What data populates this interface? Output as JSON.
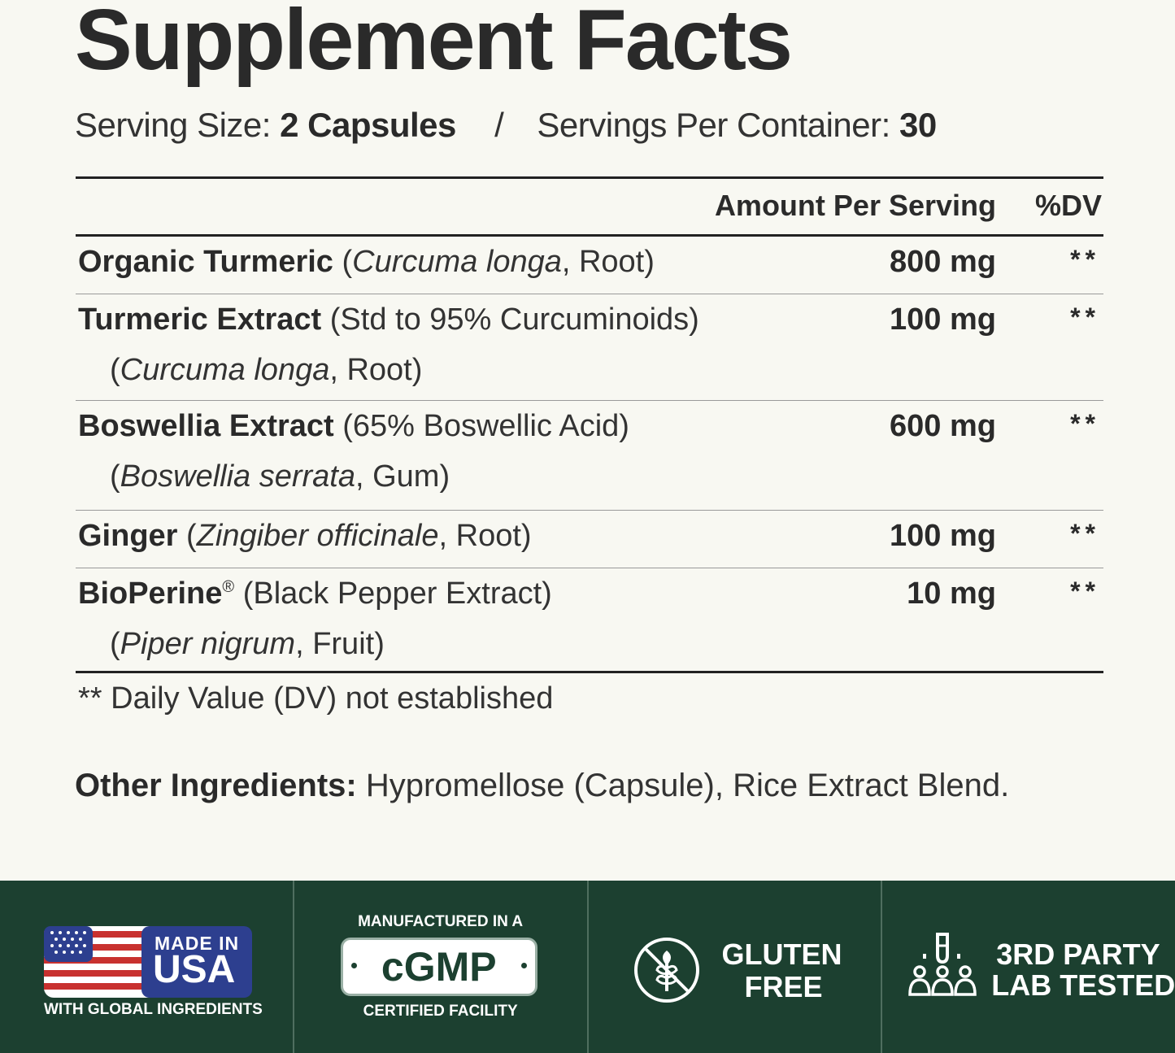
{
  "title": "Supplement Facts",
  "serving": {
    "size_label": "Serving Size:",
    "size_value": "2 Capsules",
    "separator": "/",
    "per_container_label": "Servings Per Container:",
    "per_container_value": "30"
  },
  "table": {
    "amount_header": "Amount Per Serving",
    "dv_header": "%DV",
    "rows": [
      {
        "name": "Organic Turmeric",
        "desc_open": " (",
        "desc_italic": "Curcuma longa",
        "desc_rest": ", Root)",
        "amount": "800 mg",
        "dv": "**"
      },
      {
        "name": "Turmeric Extract",
        "desc": " (Std to 95% Curcuminoids)",
        "line2_open": "(",
        "line2_italic": "Curcuma longa",
        "line2_rest": ", Root)",
        "amount": "100 mg",
        "dv": "**"
      },
      {
        "name": "Boswellia Extract",
        "desc": " (65% Boswellic Acid)",
        "line2_open": "(",
        "line2_italic": "Boswellia serrata",
        "line2_rest": ", Gum)",
        "amount": "600 mg",
        "dv": "**"
      },
      {
        "name": "Ginger",
        "desc_open": " (",
        "desc_italic": "Zingiber officinale",
        "desc_rest": ", Root)",
        "amount": "100 mg",
        "dv": "**"
      },
      {
        "name": "BioPerine",
        "registered": "®",
        "desc": " (Black Pepper Extract)",
        "line2_open": "(",
        "line2_italic": "Piper nigrum",
        "line2_rest": ", Fruit)",
        "amount": "10 mg",
        "dv": "**"
      }
    ]
  },
  "footnote": "** Daily Value (DV) not established",
  "other_ingredients": {
    "label": "Other Ingredients:",
    "value": " Hypromellose (Capsule), Rice Extract Blend."
  },
  "badges": {
    "usa": {
      "line1": "MADE IN",
      "line2": "USA",
      "line3": "WITH GLOBAL INGREDIENTS",
      "icon": "us-flag-icon"
    },
    "cgmp": {
      "top": "MANUFACTURED IN A",
      "center": "cGMP",
      "bottom": "CERTIFIED FACILITY"
    },
    "gluten": {
      "line1": "GLUTEN",
      "line2": "FREE",
      "icon": "wheat-icon"
    },
    "lab": {
      "line1": "3RD PARTY",
      "line2": "LAB TESTED",
      "icon": "lab-test-icon"
    }
  },
  "colors": {
    "background": "#f8f8f2",
    "badge_bar": "#1c4030",
    "flag_red": "#c8312f",
    "flag_blue": "#2d3f8f"
  }
}
